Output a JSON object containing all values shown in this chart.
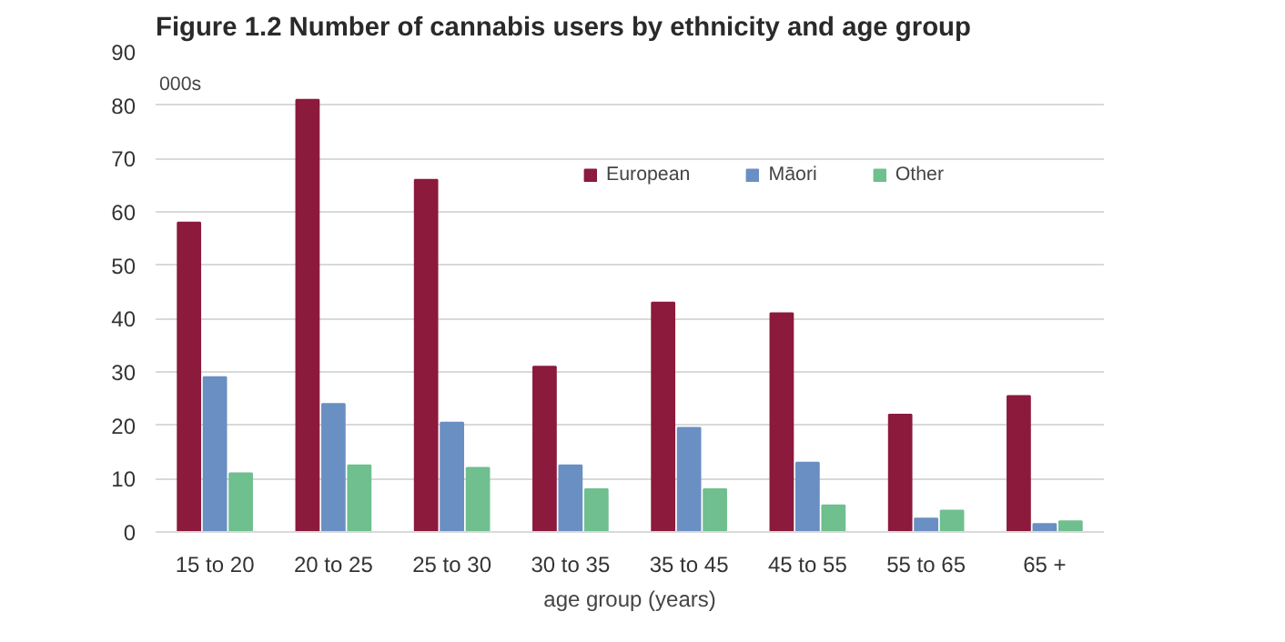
{
  "chart_data": {
    "type": "bar",
    "title": "Figure 1.2 Number of cannabis users by ethnicity and age group",
    "xlabel": "age group (years)",
    "categories": [
      "15 to 20",
      "20 to 25",
      "25 to 30",
      "30 to 35",
      "35 to 45",
      "45 to 55",
      "55 to 65",
      "65 +"
    ],
    "series": [
      {
        "name": "European",
        "color": "#8b1a3c",
        "values": [
          58,
          81,
          66,
          31,
          43,
          41,
          22,
          25.5
        ]
      },
      {
        "name": "Māori",
        "color": "#6a8fc3",
        "values": [
          29,
          24,
          20.5,
          12.5,
          19.5,
          13,
          2.5,
          1.5
        ]
      },
      {
        "name": "Other",
        "color": "#6fbf8f",
        "values": [
          11,
          12.5,
          12,
          8,
          8,
          5,
          4,
          2
        ]
      }
    ],
    "ylim": [
      0,
      90
    ],
    "yticks": [
      0,
      10,
      20,
      30,
      40,
      50,
      60,
      70,
      80,
      90
    ],
    "grid": "y",
    "legend": "top right",
    "annotations": [
      "000s"
    ]
  }
}
